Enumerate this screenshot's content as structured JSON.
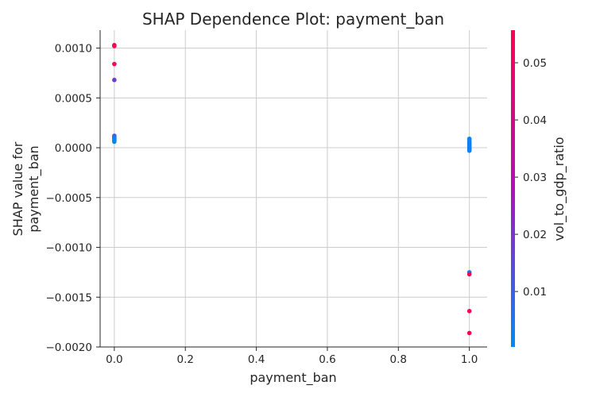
{
  "chart_data": {
    "type": "scatter",
    "title": "SHAP Dependence Plot: payment_ban",
    "xlabel": "payment_ban",
    "ylabel": [
      "SHAP value for",
      "payment_ban"
    ],
    "xlim": [
      -0.04,
      1.05
    ],
    "ylim": [
      -0.002,
      0.00118
    ],
    "xticks": [
      "0.0",
      "0.2",
      "0.4",
      "0.6",
      "0.8",
      "1.0"
    ],
    "yticks": [
      "0.0010",
      "0.0005",
      "0.0000",
      "−0.0005",
      "−0.0010",
      "−0.0015",
      "−0.0020"
    ],
    "grid": "vertical and horizontal",
    "colorbar": {
      "label": "vol_to_gdp_ratio",
      "ticks": [
        "0.05",
        "0.04",
        "0.03",
        "0.02",
        "0.01"
      ],
      "range": [
        0.0003,
        0.0557
      ],
      "low_color": "#008afb",
      "mid_color": "#b010b8",
      "high_color": "#ff0052"
    },
    "points": [
      {
        "x": 0.0,
        "y": 0.00103,
        "c": 0.055
      },
      {
        "x": 0.0,
        "y": 0.00102,
        "c": 0.054
      },
      {
        "x": 0.0,
        "y": 0.00084,
        "c": 0.053
      },
      {
        "x": 0.0,
        "y": 0.00068,
        "c": 0.018
      },
      {
        "x": 0.0,
        "y": 0.00012,
        "c": 0.012
      },
      {
        "x": 0.0,
        "y": 0.00011,
        "c": 0.006
      },
      {
        "x": 0.0,
        "y": 0.0001,
        "c": 0.004
      },
      {
        "x": 0.0,
        "y": 9e-05,
        "c": 0.003
      },
      {
        "x": 0.0,
        "y": 8e-05,
        "c": 0.002
      },
      {
        "x": 0.0,
        "y": 7e-05,
        "c": 0.001
      },
      {
        "x": 0.0,
        "y": 6e-05,
        "c": 0.002
      },
      {
        "x": 1.0,
        "y": 9e-05,
        "c": 0.001
      },
      {
        "x": 1.0,
        "y": 8e-05,
        "c": 0.002
      },
      {
        "x": 1.0,
        "y": 6e-05,
        "c": 0.003
      },
      {
        "x": 1.0,
        "y": 5e-05,
        "c": 0.001
      },
      {
        "x": 1.0,
        "y": 4e-05,
        "c": 0.004
      },
      {
        "x": 1.0,
        "y": 3e-05,
        "c": 0.002
      },
      {
        "x": 1.0,
        "y": 2e-05,
        "c": 0.005
      },
      {
        "x": 1.0,
        "y": 1e-05,
        "c": 0.001
      },
      {
        "x": 1.0,
        "y": 0.0,
        "c": 0.003
      },
      {
        "x": 1.0,
        "y": -1e-05,
        "c": 0.002
      },
      {
        "x": 1.0,
        "y": -2e-05,
        "c": 0.006
      },
      {
        "x": 1.0,
        "y": -3e-05,
        "c": 0.001
      },
      {
        "x": 1.0,
        "y": -0.00125,
        "c": 0.004
      },
      {
        "x": 1.0,
        "y": -0.00127,
        "c": 0.054
      },
      {
        "x": 1.0,
        "y": -0.00164,
        "c": 0.055
      },
      {
        "x": 1.0,
        "y": -0.00186,
        "c": 0.055
      }
    ]
  }
}
